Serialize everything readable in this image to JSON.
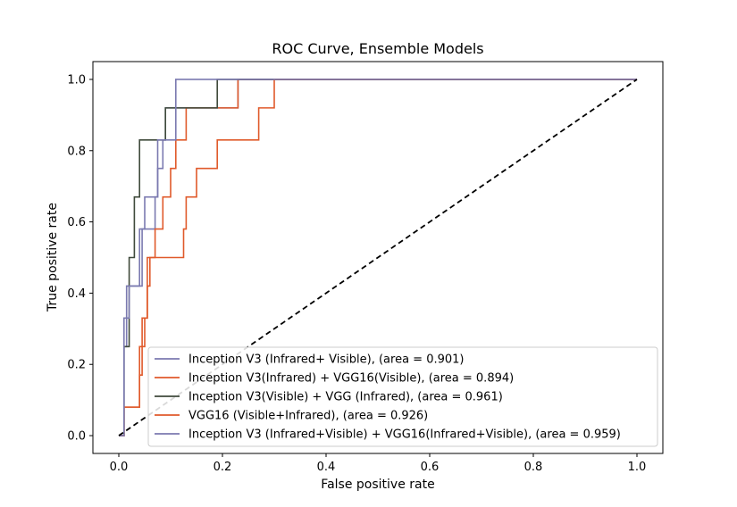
{
  "chart_data": {
    "type": "line",
    "title": "ROC Curve, Ensemble Models",
    "xlabel": "False positive rate",
    "ylabel": "True positive rate",
    "xlim": [
      -0.05,
      1.05
    ],
    "ylim": [
      -0.05,
      1.05
    ],
    "xticks": [
      0.0,
      0.2,
      0.4,
      0.6,
      0.8,
      1.0
    ],
    "yticks": [
      0.0,
      0.2,
      0.4,
      0.6,
      0.8,
      1.0
    ],
    "xtick_labels": [
      "0.0",
      "0.2",
      "0.4",
      "0.6",
      "0.8",
      "1.0"
    ],
    "ytick_labels": [
      "0.0",
      "0.2",
      "0.4",
      "0.6",
      "0.8",
      "1.0"
    ],
    "grid": false,
    "legend_position": "lower-right",
    "series": [
      {
        "name": "Inception V3 (Infrared+ Visible), (area = 0.901)",
        "color": "#7b7ab0",
        "points": [
          [
            0.0,
            0.0
          ],
          [
            0.01,
            0.0
          ],
          [
            0.01,
            0.25
          ],
          [
            0.015,
            0.25
          ],
          [
            0.015,
            0.42
          ],
          [
            0.04,
            0.42
          ],
          [
            0.04,
            0.58
          ],
          [
            0.07,
            0.58
          ],
          [
            0.07,
            0.67
          ],
          [
            0.075,
            0.67
          ],
          [
            0.075,
            0.75
          ],
          [
            0.085,
            0.75
          ],
          [
            0.085,
            0.83
          ],
          [
            0.09,
            0.83
          ],
          [
            0.09,
            0.92
          ],
          [
            0.19,
            0.92
          ],
          [
            0.19,
            0.92
          ],
          [
            0.23,
            0.92
          ],
          [
            0.23,
            1.0
          ],
          [
            0.38,
            1.0
          ],
          [
            1.0,
            1.0
          ]
        ]
      },
      {
        "name": "Inception V3(Infrared) + VGG16(Visible), (area = 0.894)",
        "color": "#e05a2b",
        "points": [
          [
            0.0,
            0.0
          ],
          [
            0.01,
            0.0
          ],
          [
            0.01,
            0.08
          ],
          [
            0.04,
            0.08
          ],
          [
            0.04,
            0.25
          ],
          [
            0.045,
            0.25
          ],
          [
            0.045,
            0.33
          ],
          [
            0.055,
            0.33
          ],
          [
            0.055,
            0.42
          ],
          [
            0.06,
            0.42
          ],
          [
            0.06,
            0.5
          ],
          [
            0.07,
            0.5
          ],
          [
            0.07,
            0.58
          ],
          [
            0.085,
            0.58
          ],
          [
            0.085,
            0.67
          ],
          [
            0.1,
            0.67
          ],
          [
            0.1,
            0.75
          ],
          [
            0.11,
            0.75
          ],
          [
            0.11,
            0.83
          ],
          [
            0.13,
            0.83
          ],
          [
            0.13,
            0.92
          ],
          [
            0.23,
            0.92
          ],
          [
            0.23,
            1.0
          ],
          [
            0.3,
            1.0
          ],
          [
            1.0,
            1.0
          ]
        ]
      },
      {
        "name": "Inception V3(Visible) + VGG (Infrared), (area = 0.961)",
        "color": "#3f4a3b",
        "points": [
          [
            0.0,
            0.0
          ],
          [
            0.01,
            0.0
          ],
          [
            0.01,
            0.25
          ],
          [
            0.02,
            0.25
          ],
          [
            0.02,
            0.5
          ],
          [
            0.03,
            0.5
          ],
          [
            0.03,
            0.67
          ],
          [
            0.04,
            0.67
          ],
          [
            0.04,
            0.83
          ],
          [
            0.09,
            0.83
          ],
          [
            0.09,
            0.92
          ],
          [
            0.19,
            0.92
          ],
          [
            0.19,
            1.0
          ],
          [
            1.0,
            1.0
          ]
        ]
      },
      {
        "name": "VGG16 (Visible+Infrared), (area = 0.926)",
        "color": "#e05a2b",
        "points": [
          [
            0.0,
            0.0
          ],
          [
            0.01,
            0.0
          ],
          [
            0.01,
            0.08
          ],
          [
            0.04,
            0.08
          ],
          [
            0.04,
            0.17
          ],
          [
            0.045,
            0.17
          ],
          [
            0.045,
            0.25
          ],
          [
            0.05,
            0.25
          ],
          [
            0.05,
            0.33
          ],
          [
            0.055,
            0.33
          ],
          [
            0.055,
            0.5
          ],
          [
            0.125,
            0.5
          ],
          [
            0.125,
            0.58
          ],
          [
            0.13,
            0.58
          ],
          [
            0.13,
            0.67
          ],
          [
            0.15,
            0.67
          ],
          [
            0.15,
            0.75
          ],
          [
            0.19,
            0.75
          ],
          [
            0.19,
            0.83
          ],
          [
            0.27,
            0.83
          ],
          [
            0.27,
            0.92
          ],
          [
            0.3,
            0.92
          ],
          [
            0.3,
            1.0
          ],
          [
            1.0,
            1.0
          ]
        ]
      },
      {
        "name": "Inception V3 (Infrared+Visible) + VGG16(Infrared+Visible), (area = 0.959)",
        "color": "#7b7ab0",
        "points": [
          [
            0.0,
            0.0
          ],
          [
            0.01,
            0.0
          ],
          [
            0.01,
            0.33
          ],
          [
            0.02,
            0.33
          ],
          [
            0.02,
            0.42
          ],
          [
            0.045,
            0.42
          ],
          [
            0.045,
            0.58
          ],
          [
            0.05,
            0.58
          ],
          [
            0.05,
            0.67
          ],
          [
            0.075,
            0.67
          ],
          [
            0.075,
            0.83
          ],
          [
            0.11,
            0.83
          ],
          [
            0.11,
            1.0
          ],
          [
            1.0,
            1.0
          ]
        ]
      }
    ],
    "reference_line": {
      "color": "#000000",
      "dashed": true,
      "points": [
        [
          0.0,
          0.0
        ],
        [
          1.0,
          1.0
        ]
      ]
    }
  }
}
